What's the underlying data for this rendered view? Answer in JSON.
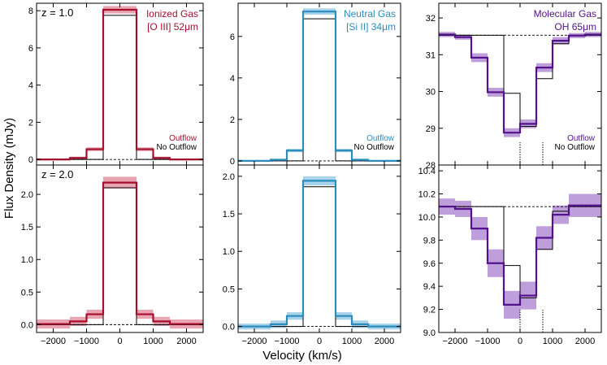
{
  "figure": {
    "xlabel": "Velocity (km/s)",
    "ylabel": "Flux Density (mJy)"
  },
  "colors": {
    "ionized": "#a50f2d",
    "ionized_band": "#e8a5b1",
    "neutral": "#2b8cbe",
    "neutral_band": "#a9d3ea",
    "molecular": "#54118c",
    "molecular_band": "#bf9fdb",
    "model": "#000000"
  },
  "chart_data": [
    {
      "type": "line",
      "panel": "ionized-z1",
      "row_label": "z = 1.0",
      "title_line1": "Ionized Gas",
      "title_line2": "[O III] 52μm",
      "legend": [
        "Outflow",
        "No Outflow"
      ],
      "xlim": [
        -2500,
        2500
      ],
      "ylim": [
        -0.3,
        8.4
      ],
      "xticks": [
        -2000,
        -1000,
        0,
        1000,
        2000
      ],
      "yticks": [
        0,
        2,
        4,
        6,
        8
      ],
      "ytick_labels": [
        "0",
        "2",
        "4",
        "6",
        "8"
      ],
      "xtick_labels": [],
      "color_key": "ionized",
      "continuum": 0,
      "edges": [
        -2500,
        -1500,
        -1000,
        -500,
        500,
        1000,
        1500,
        2500
      ],
      "outflow": [
        0.0,
        0.08,
        0.55,
        8.05,
        0.55,
        0.08,
        0.0
      ],
      "no_outflow": [
        0.0,
        0.0,
        0.0,
        7.75,
        0.0,
        0.0,
        0.0
      ],
      "band": [
        0.05,
        0.07,
        0.1,
        0.2,
        0.1,
        0.07,
        0.05
      ],
      "markers": []
    },
    {
      "type": "line",
      "panel": "neutral-z1",
      "title_line1": "Neutral Gas",
      "title_line2": "[Si II] 34μm",
      "legend": [
        "Outflow",
        "No Outflow"
      ],
      "xlim": [
        -2500,
        2500
      ],
      "ylim": [
        -0.2,
        7.6
      ],
      "xticks": [
        -2000,
        -1000,
        0,
        1000,
        2000
      ],
      "yticks": [
        0,
        2,
        4,
        6
      ],
      "ytick_labels": [
        "0",
        "2",
        "4",
        "6"
      ],
      "xtick_labels": [],
      "color_key": "neutral",
      "continuum": 0,
      "edges": [
        -2500,
        -1500,
        -1000,
        -500,
        500,
        1000,
        1500,
        2500
      ],
      "outflow": [
        0.0,
        0.05,
        0.5,
        7.2,
        0.5,
        0.05,
        0.0
      ],
      "no_outflow": [
        0.0,
        0.0,
        0.0,
        6.85,
        0.0,
        0.0,
        0.0
      ],
      "band": [
        0.04,
        0.06,
        0.08,
        0.15,
        0.08,
        0.06,
        0.04
      ],
      "markers": []
    },
    {
      "type": "line",
      "panel": "molecular-z1",
      "title_line1": "Molecular Gas",
      "title_line2": "OH 65μm",
      "legend": [
        "Outflow",
        "No Outflow"
      ],
      "xlim": [
        -2500,
        2500
      ],
      "ylim": [
        28.0,
        32.4
      ],
      "xticks": [
        -2000,
        -1000,
        0,
        1000,
        2000
      ],
      "yticks": [
        28,
        29,
        30,
        31,
        32
      ],
      "ytick_labels": [
        "28",
        "29",
        "30",
        "31",
        "32"
      ],
      "xtick_labels": [],
      "color_key": "molecular",
      "continuum": 31.53,
      "edges": [
        -2500,
        -2000,
        -1500,
        -1000,
        -500,
        0,
        500,
        1000,
        1500,
        2000,
        2500
      ],
      "outflow": [
        31.55,
        31.48,
        30.92,
        29.98,
        28.88,
        29.12,
        30.65,
        31.38,
        31.52,
        31.55
      ],
      "no_outflow": [
        31.53,
        31.53,
        31.53,
        31.53,
        29.95,
        29.05,
        30.35,
        31.3,
        31.53,
        31.53
      ],
      "band": [
        0.07,
        0.07,
        0.12,
        0.12,
        0.12,
        0.12,
        0.12,
        0.1,
        0.07,
        0.07
      ],
      "markers": [
        0,
        700
      ]
    },
    {
      "type": "line",
      "panel": "ionized-z2",
      "row_label": "z = 2.0",
      "xlim": [
        -2500,
        2500
      ],
      "ylim": [
        -0.12,
        2.45
      ],
      "xticks": [
        -2000,
        -1000,
        0,
        1000,
        2000
      ],
      "yticks": [
        0.0,
        0.5,
        1.0,
        1.5,
        2.0
      ],
      "ytick_labels": [
        "0.0",
        "0.5",
        "1.0",
        "1.5",
        "2.0"
      ],
      "xtick_labels": [
        "−2000",
        "−1000",
        "0",
        "1000",
        "2000"
      ],
      "color_key": "ionized",
      "continuum": 0,
      "edges": [
        -2500,
        -1500,
        -1000,
        -500,
        500,
        1000,
        1500,
        2500
      ],
      "outflow": [
        0.01,
        0.05,
        0.16,
        2.18,
        0.16,
        0.05,
        0.01
      ],
      "no_outflow": [
        0.0,
        0.0,
        0.0,
        2.1,
        0.0,
        0.0,
        0.0
      ],
      "band": [
        0.07,
        0.07,
        0.07,
        0.09,
        0.07,
        0.07,
        0.07
      ],
      "markers": []
    },
    {
      "type": "line",
      "panel": "neutral-z2",
      "xlim": [
        -2500,
        2500
      ],
      "ylim": [
        -0.08,
        2.15
      ],
      "xticks": [
        -2000,
        -1000,
        0,
        1000,
        2000
      ],
      "yticks": [
        0.0,
        0.5,
        1.0,
        1.5,
        2.0
      ],
      "ytick_labels": [
        "0.0",
        "0.5",
        "1.0",
        "1.5",
        "2.0"
      ],
      "xtick_labels": [
        "−2000",
        "−1000",
        "0",
        "1000",
        "2000"
      ],
      "color_key": "neutral",
      "continuum": 0,
      "edges": [
        -2500,
        -1500,
        -1000,
        -500,
        500,
        1000,
        1500,
        2500
      ],
      "outflow": [
        0.0,
        0.03,
        0.14,
        1.94,
        0.14,
        0.03,
        0.0
      ],
      "no_outflow": [
        0.0,
        0.0,
        0.0,
        1.86,
        0.0,
        0.0,
        0.0
      ],
      "band": [
        0.04,
        0.05,
        0.05,
        0.06,
        0.05,
        0.05,
        0.04
      ],
      "markers": []
    },
    {
      "type": "line",
      "panel": "molecular-z2",
      "xlim": [
        -2500,
        2500
      ],
      "ylim": [
        9.0,
        10.45
      ],
      "xticks": [
        -2000,
        -1000,
        0,
        1000,
        2000
      ],
      "yticks": [
        9.0,
        9.2,
        9.4,
        9.6,
        9.8,
        10.0,
        10.2,
        10.4
      ],
      "ytick_labels": [
        "9.0",
        "9.2",
        "9.4",
        "9.6",
        "9.8",
        "10.0",
        "10.2",
        "10.4"
      ],
      "xtick_labels": [
        "−2000",
        "−1000",
        "0",
        "1000",
        "2000"
      ],
      "color_key": "molecular",
      "continuum": 10.09,
      "edges": [
        -2500,
        -2000,
        -1500,
        -1000,
        -500,
        0,
        500,
        1000,
        1500,
        2000,
        2500
      ],
      "outflow": [
        10.09,
        10.07,
        9.9,
        9.6,
        9.24,
        9.32,
        9.82,
        10.02,
        10.1,
        10.1
      ],
      "no_outflow": [
        10.09,
        10.09,
        10.09,
        10.09,
        9.58,
        9.3,
        9.72,
        10.05,
        10.09,
        10.09
      ],
      "band": [
        0.07,
        0.07,
        0.1,
        0.12,
        0.12,
        0.12,
        0.1,
        0.08,
        0.1,
        0.1
      ],
      "markers": [
        0,
        700
      ]
    }
  ]
}
